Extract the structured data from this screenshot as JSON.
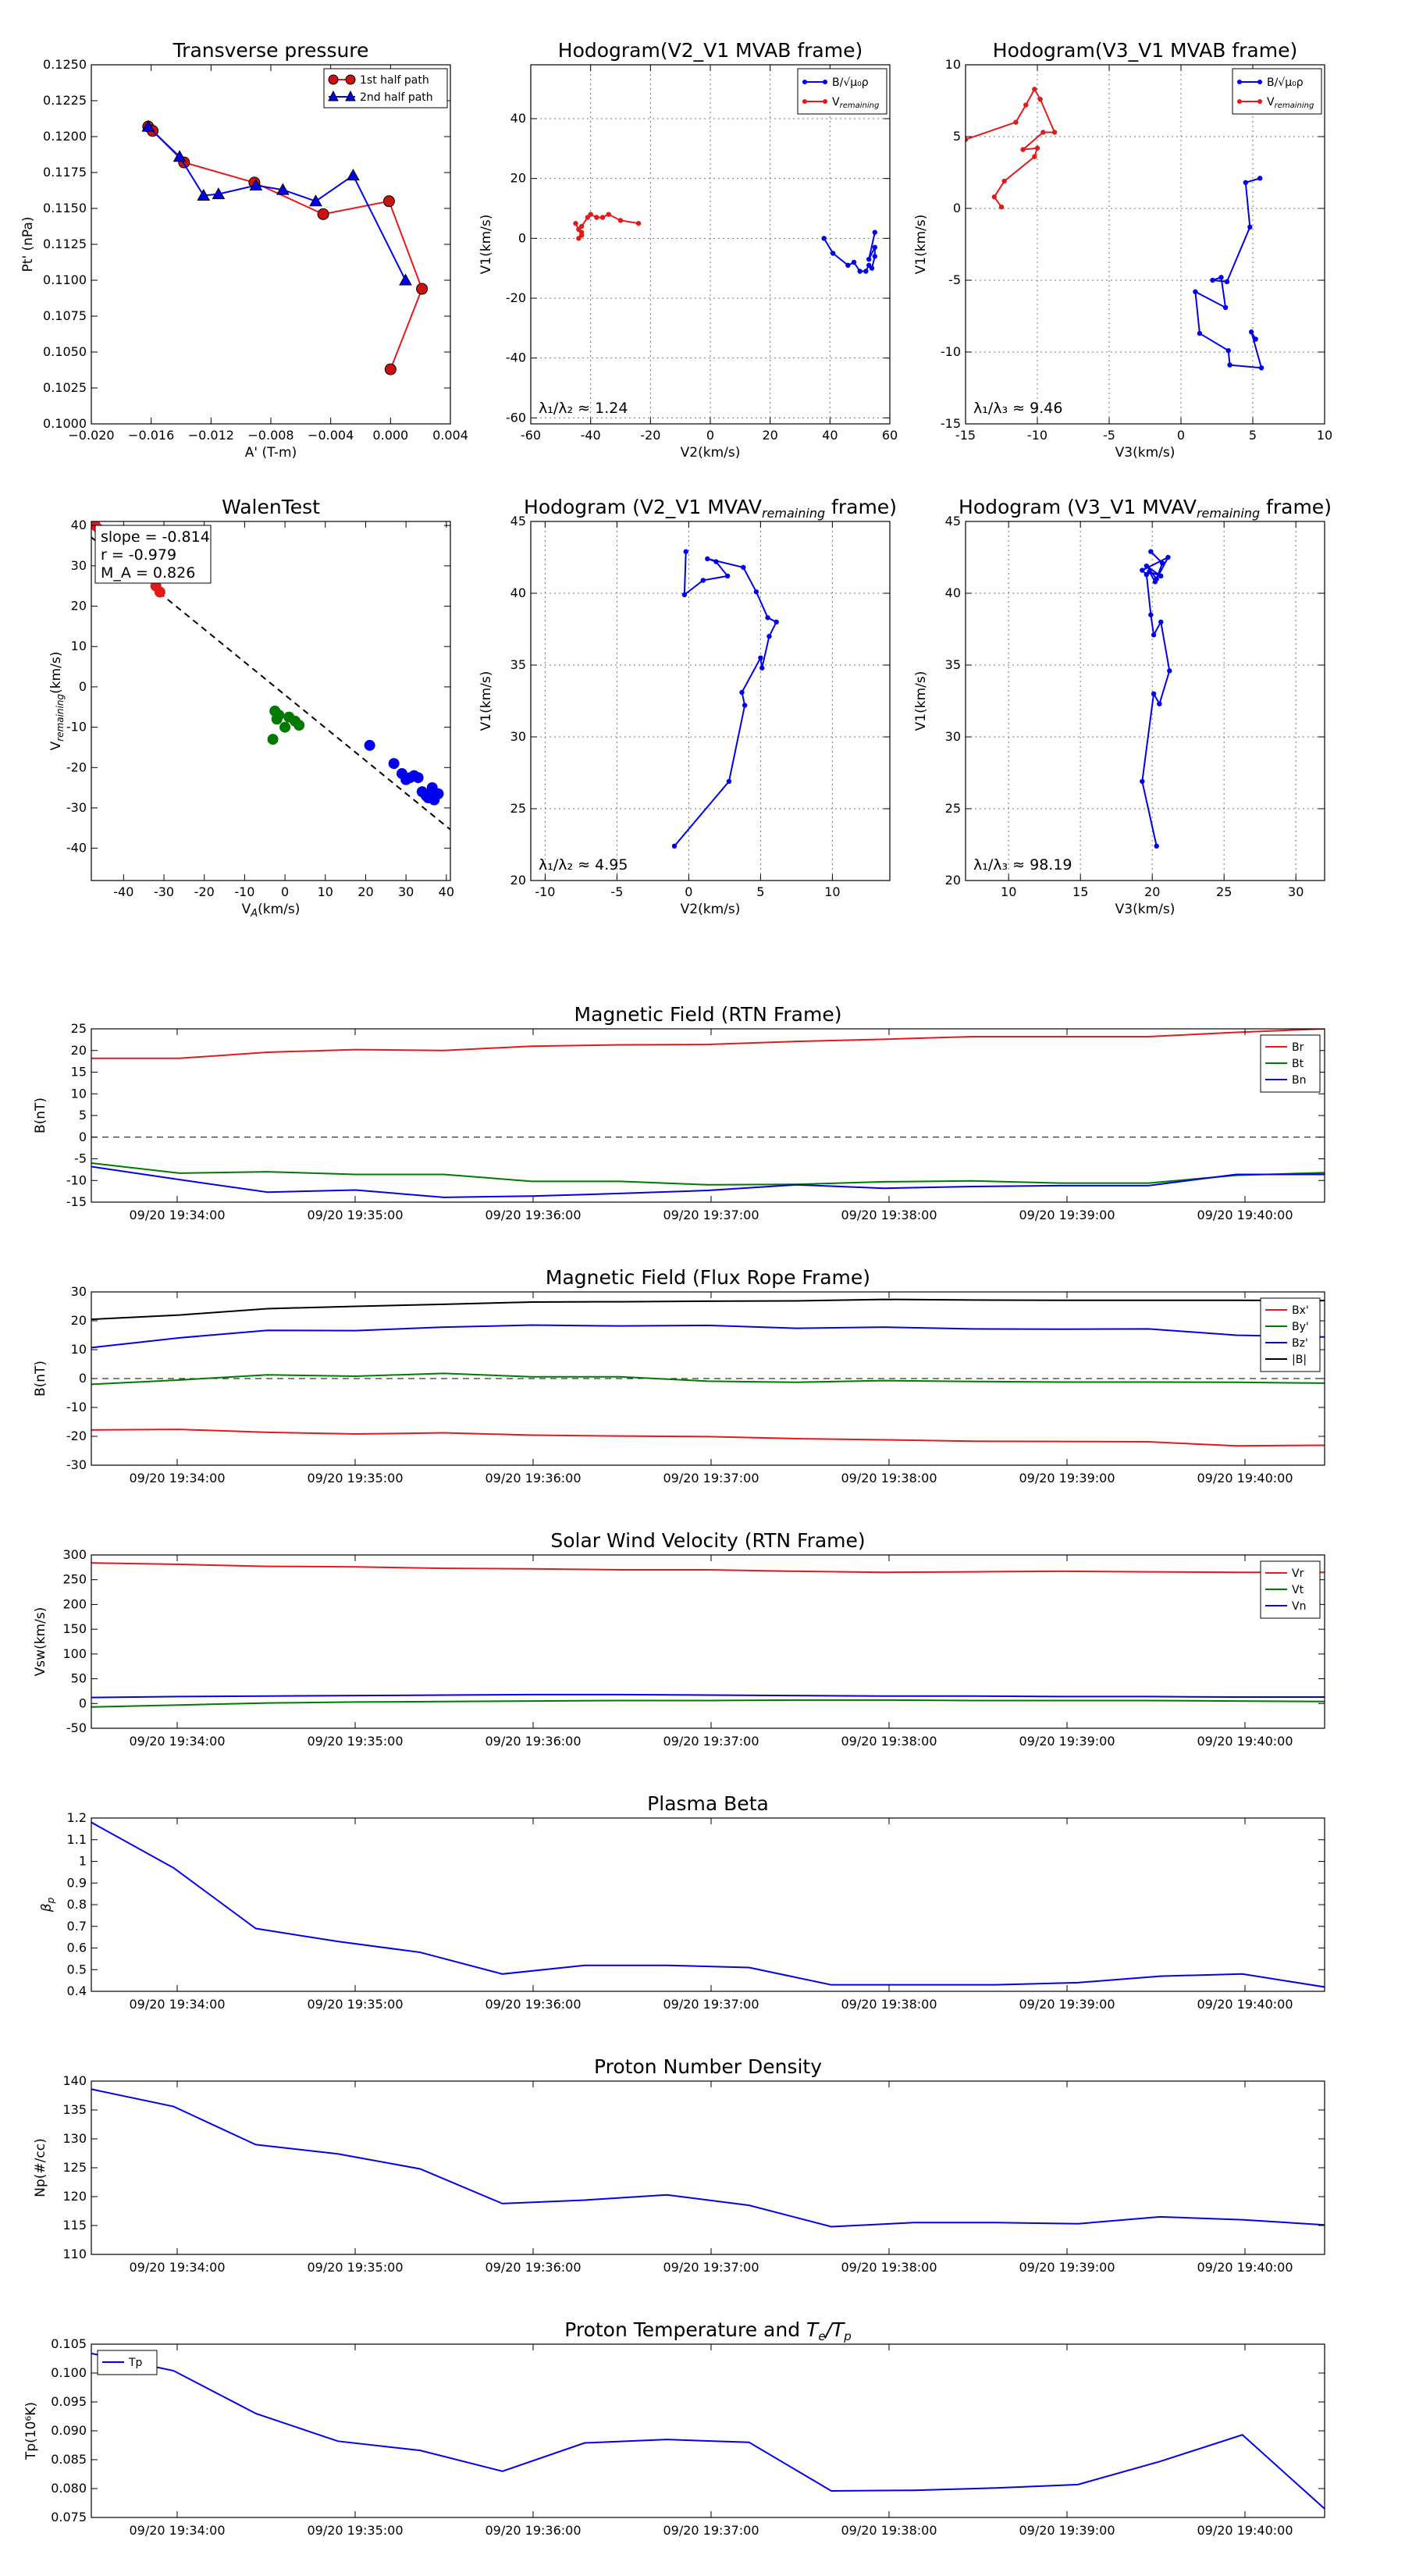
{
  "colors": {
    "red": "#e31a1c",
    "green": "#007a00",
    "blue": "#0000ee",
    "black": "#000000",
    "pt_red": "#cc1111"
  },
  "chart_data": [
    {
      "id": "pt",
      "type": "line",
      "title": "Transverse pressure",
      "xlabel": "A' (T-m)",
      "ylabel": "Pt' (nPa)",
      "xlim": [
        -0.02,
        0.004
      ],
      "ylim": [
        0.1,
        0.125
      ],
      "xticks": [
        -0.02,
        -0.016,
        -0.012,
        -0.008,
        -0.004,
        0.0,
        0.004
      ],
      "xtick_labels": [
        "−0.020",
        "−0.016",
        "−0.012",
        "−0.008",
        "−0.004",
        "0.000",
        "0.004"
      ],
      "yticks": [
        0.1,
        0.1025,
        0.105,
        0.1075,
        0.11,
        0.1125,
        0.115,
        0.1175,
        0.12,
        0.1225,
        0.125
      ],
      "ytick_labels": [
        "0.1000",
        "0.1025",
        "0.1050",
        "0.1075",
        "0.1100",
        "0.1125",
        "0.1150",
        "0.1175",
        "0.1200",
        "0.1225",
        "0.1250"
      ],
      "grid": false,
      "legend": "top-right",
      "series": [
        {
          "name": "1st half path",
          "color": "red",
          "marker": "circle",
          "x": [
            -0.0162,
            -0.0159,
            -0.0138,
            -0.0091,
            -0.0045,
            -0.0001,
            0.0021,
            0.0
          ],
          "y": [
            0.1207,
            0.1204,
            0.1182,
            0.1168,
            0.1146,
            0.1155,
            0.1094,
            0.1038
          ]
        },
        {
          "name": "2nd half path",
          "color": "blue",
          "marker": "triangle",
          "x": [
            -0.0162,
            -0.0141,
            -0.0125,
            -0.0115,
            -0.009,
            -0.0072,
            -0.005,
            -0.0025,
            0.001
          ],
          "y": [
            0.1207,
            0.1186,
            0.1159,
            0.116,
            0.1166,
            0.1163,
            0.1155,
            0.1173,
            0.11
          ]
        }
      ]
    },
    {
      "id": "hodo1",
      "type": "line",
      "title": "Hodogram(V2_V1 MVAB frame)",
      "xlabel": "V2(km/s)",
      "ylabel": "V1(km/s)",
      "xlim": [
        -60,
        60
      ],
      "ylim": [
        -62,
        58
      ],
      "xticks": [
        -60,
        -40,
        -20,
        0,
        20,
        40,
        60
      ],
      "yticks": [
        -60,
        -40,
        -20,
        0,
        20,
        40
      ],
      "grid": true,
      "legend": "top-right",
      "legend_labels": [
        "B/√μ₀ρ",
        "V_remaining"
      ],
      "annotation": "λ₁/λ₂ ≈ 1.24",
      "series": [
        {
          "color": "blue",
          "marker": "dot",
          "x": [
            38,
            41,
            46,
            48,
            50,
            52,
            53,
            54,
            55,
            55,
            53,
            55
          ],
          "y": [
            0,
            -5,
            -9,
            -8,
            -11,
            -11,
            -9,
            -10,
            -6,
            -3,
            -7,
            2
          ]
        },
        {
          "color": "red",
          "marker": "dot",
          "x": [
            -24,
            -30,
            -34,
            -36,
            -38,
            -40,
            -41,
            -43,
            -44,
            -45,
            -43,
            -43,
            -44
          ],
          "y": [
            5,
            6,
            8,
            7,
            7,
            8,
            7,
            4,
            3,
            5,
            1,
            2,
            0
          ]
        }
      ]
    },
    {
      "id": "hodo2",
      "type": "line",
      "title": "Hodogram(V3_V1 MVAB frame)",
      "xlabel": "V3(km/s)",
      "ylabel": "V1(km/s)",
      "xlim": [
        -15,
        10
      ],
      "ylim": [
        -15,
        10
      ],
      "xticks": [
        -15,
        -10,
        -5,
        0,
        5,
        10
      ],
      "yticks": [
        -15,
        -10,
        -5,
        0,
        5,
        10
      ],
      "grid": true,
      "legend": "top-right",
      "legend_labels": [
        "B/√μ₀ρ",
        "V_remaining"
      ],
      "annotation": "λ₁/λ₃ ≈ 9.46",
      "series": [
        {
          "color": "blue",
          "marker": "dot",
          "x": [
            5.5,
            4.5,
            4.8,
            3.2,
            2.2,
            2.8,
            3.1,
            1.0,
            1.3,
            3.3,
            3.4,
            5.6,
            4.9,
            5.2
          ],
          "y": [
            2.1,
            1.8,
            -1.3,
            -5.1,
            -5.0,
            -4.8,
            -6.9,
            -5.8,
            -8.7,
            -9.9,
            -10.9,
            -11.1,
            -8.6,
            -9.1
          ]
        },
        {
          "color": "red",
          "marker": "dot",
          "x": [
            -15.0,
            -11.5,
            -10.8,
            -10.2,
            -9.8,
            -8.8,
            -9.6,
            -11.0,
            -10.0,
            -10.2,
            -12.3,
            -13.0,
            -12.5
          ],
          "y": [
            4.8,
            6.0,
            7.2,
            8.3,
            7.6,
            5.3,
            5.3,
            4.1,
            4.2,
            3.6,
            1.9,
            0.8,
            0.1
          ]
        }
      ]
    },
    {
      "id": "walen",
      "type": "scatter",
      "title": "WalenTest",
      "xlabel": "V_A(km/s)",
      "ylabel": "V_remaining(km/s)",
      "xlim": [
        -48,
        41
      ],
      "ylim": [
        -48,
        41
      ],
      "xticks": [
        -40,
        -30,
        -20,
        -10,
        0,
        10,
        20,
        30,
        40
      ],
      "yticks": [
        -40,
        -30,
        -20,
        -10,
        0,
        10,
        20,
        30,
        40
      ],
      "grid": false,
      "annotation": [
        "slope = -0.814",
        "r = -0.979",
        "M_A = 0.826"
      ],
      "fit": {
        "slope": -0.814,
        "intercept": -2.0
      },
      "series": [
        {
          "color": "red",
          "x": [
            -47,
            -46,
            -45,
            -45.5,
            -44,
            -43,
            -42,
            -41,
            -40,
            -39,
            -38,
            -36,
            -35,
            -33,
            -31,
            -32
          ],
          "y": [
            40,
            39,
            38,
            36,
            36,
            35,
            35,
            33,
            33,
            32,
            31,
            30,
            29,
            27,
            23.5,
            25
          ]
        },
        {
          "color": "green",
          "x": [
            -2.5,
            -1.5,
            -2,
            0,
            1,
            2.5,
            3.5,
            -3
          ],
          "y": [
            -6,
            -7,
            -8,
            -10,
            -7.5,
            -8.5,
            -9.5,
            -13
          ]
        },
        {
          "color": "blue",
          "x": [
            21,
            27,
            29,
            30,
            31,
            32,
            33,
            34,
            35,
            36,
            37,
            38,
            36.5,
            35.5
          ],
          "y": [
            -14.5,
            -19,
            -21.5,
            -23,
            -22.5,
            -22,
            -22.5,
            -26,
            -27,
            -26.5,
            -28,
            -26.5,
            -25,
            -27.5
          ]
        }
      ]
    },
    {
      "id": "hodo3",
      "type": "line",
      "title": "Hodogram (V2_V1 MVAV_remaining frame)",
      "xlabel": "V2(km/s)",
      "ylabel": "V1(km/s)",
      "xlim": [
        -11,
        14
      ],
      "ylim": [
        20,
        45
      ],
      "xticks": [
        -10,
        -5,
        0,
        5,
        10
      ],
      "yticks": [
        20,
        25,
        30,
        35,
        40,
        45
      ],
      "grid": true,
      "annotation": "λ₁/λ₂ ≈ 4.95",
      "series": [
        {
          "color": "blue",
          "marker": "dot",
          "x": [
            -0.2,
            -0.3,
            1.0,
            2.7,
            1.9,
            1.3,
            3.8,
            4.7,
            5.5,
            6.1,
            5.6,
            5.1,
            5.0,
            3.7,
            3.9,
            2.8,
            -1.0
          ],
          "y": [
            42.9,
            39.9,
            40.9,
            41.2,
            42.2,
            42.4,
            41.8,
            40.1,
            38.3,
            38.0,
            37.0,
            34.8,
            35.5,
            33.1,
            32.2,
            26.9,
            22.4
          ]
        }
      ]
    },
    {
      "id": "hodo4",
      "type": "line",
      "title": "Hodogram (V3_V1 MVAV_remaining frame)",
      "xlabel": "V3(km/s)",
      "ylabel": "V1(km/s)",
      "xlim": [
        7,
        32
      ],
      "ylim": [
        20,
        45
      ],
      "xticks": [
        10,
        15,
        20,
        25,
        30
      ],
      "yticks": [
        20,
        25,
        30,
        35,
        40,
        45
      ],
      "grid": true,
      "annotation": "λ₁/λ₃ ≈ 98.19",
      "series": [
        {
          "color": "blue",
          "marker": "dot",
          "x": [
            19.9,
            20.7,
            20.3,
            19.6,
            20.6,
            19.8,
            20.2,
            21.1,
            19.3,
            19.6,
            19.9,
            20.1,
            20.6,
            21.2,
            20.5,
            20.1,
            19.3,
            20.3
          ],
          "y": [
            42.9,
            42.1,
            41.0,
            41.9,
            41.2,
            41.5,
            40.8,
            42.5,
            41.6,
            41.3,
            38.5,
            37.1,
            38.0,
            34.6,
            32.3,
            33.0,
            26.9,
            22.4
          ]
        }
      ]
    },
    {
      "id": "brtn",
      "type": "line",
      "title": "Magnetic Field (RTN Frame)",
      "ylabel": "B(nT)",
      "ylim": [
        -15,
        25
      ],
      "yticks": [
        -15,
        -10,
        -5,
        0,
        5,
        10,
        15,
        20,
        25
      ],
      "xticks_labels": [
        "09/20 19:34:00",
        "09/20 19:35:00",
        "09/20 19:36:00",
        "09/20 19:37:00",
        "09/20 19:38:00",
        "09/20 19:39:00",
        "09/20 19:40:00"
      ],
      "zero_line": true,
      "legend": "top-right",
      "series": [
        {
          "name": "Br",
          "color": "red",
          "values": [
            18.2,
            18.2,
            19.6,
            20.2,
            20.0,
            21.0,
            21.3,
            21.4,
            22.1,
            22.6,
            23.2,
            23.2,
            23.2,
            24.2,
            25.0
          ]
        },
        {
          "name": "Bt",
          "color": "green",
          "values": [
            -6.0,
            -8.3,
            -8.0,
            -8.6,
            -8.6,
            -10.2,
            -10.2,
            -11.0,
            -10.9,
            -10.3,
            -10.1,
            -10.6,
            -10.6,
            -8.8,
            -8.2
          ]
        },
        {
          "name": "Bn",
          "color": "blue",
          "values": [
            -6.8,
            -9.8,
            -12.7,
            -12.2,
            -13.9,
            -13.6,
            -13.0,
            -12.3,
            -11.0,
            -11.8,
            -11.4,
            -11.2,
            -11.2,
            -8.6,
            -8.6
          ]
        }
      ]
    },
    {
      "id": "bfr",
      "type": "line",
      "title": "Magnetic Field (Flux Rope Frame)",
      "ylabel": "B(nT)",
      "ylim": [
        -30,
        30
      ],
      "yticks": [
        -30,
        -20,
        -10,
        0,
        10,
        20,
        30
      ],
      "xticks_labels": [
        "09/20 19:34:00",
        "09/20 19:35:00",
        "09/20 19:36:00",
        "09/20 19:37:00",
        "09/20 19:38:00",
        "09/20 19:39:00",
        "09/20 19:40:00"
      ],
      "zero_line": true,
      "legend": "top-right",
      "series": [
        {
          "name": "Bx'",
          "color": "red",
          "values": [
            -17.8,
            -17.6,
            -18.6,
            -19.2,
            -18.8,
            -19.6,
            -19.9,
            -20.1,
            -20.8,
            -21.2,
            -21.7,
            -21.8,
            -21.9,
            -23.3,
            -23.1
          ]
        },
        {
          "name": "By'",
          "color": "green",
          "values": [
            -2.0,
            -0.5,
            1.3,
            0.8,
            1.8,
            0.6,
            0.6,
            -0.9,
            -1.3,
            -0.7,
            -1.0,
            -1.2,
            -1.2,
            -1.3,
            -1.6
          ]
        },
        {
          "name": "Bz'",
          "color": "blue",
          "values": [
            10.7,
            14.1,
            16.7,
            16.6,
            17.8,
            18.5,
            18.2,
            18.4,
            17.4,
            17.8,
            17.2,
            17.1,
            17.2,
            15.0,
            14.4
          ]
        },
        {
          "name": "|B|",
          "color": "black",
          "values": [
            20.5,
            22.0,
            24.2,
            25.0,
            25.7,
            26.5,
            26.6,
            26.8,
            26.9,
            27.4,
            27.2,
            27.1,
            27.1,
            27.1,
            27.0
          ]
        }
      ]
    },
    {
      "id": "vsw",
      "type": "line",
      "title": "Solar Wind Velocity (RTN Frame)",
      "ylabel": "Vsw(km/s)",
      "ylim": [
        -50,
        300
      ],
      "yticks": [
        -50,
        0,
        50,
        100,
        150,
        200,
        250,
        300
      ],
      "xticks_labels": [
        "09/20 19:34:00",
        "09/20 19:35:00",
        "09/20 19:36:00",
        "09/20 19:37:00",
        "09/20 19:38:00",
        "09/20 19:39:00",
        "09/20 19:40:00"
      ],
      "legend": "top-right",
      "series": [
        {
          "name": "Vr",
          "color": "red",
          "values": [
            284,
            281,
            277,
            276,
            273,
            272,
            270,
            270,
            267,
            265,
            266,
            267,
            266,
            265,
            265
          ]
        },
        {
          "name": "Vt",
          "color": "green",
          "values": [
            -7,
            -3,
            1,
            3,
            4,
            5,
            6,
            6,
            7,
            7,
            6,
            6,
            6,
            5,
            4
          ]
        },
        {
          "name": "Vn",
          "color": "blue",
          "values": [
            12,
            14,
            15,
            16,
            17,
            18,
            18,
            17,
            16,
            15,
            15,
            14,
            14,
            13,
            13
          ]
        }
      ]
    },
    {
      "id": "beta",
      "type": "line",
      "title": "Plasma Beta",
      "ylabel": "βp",
      "ylim": [
        0.4,
        1.2
      ],
      "yticks": [
        0.4,
        0.5,
        0.6,
        0.7,
        0.8,
        0.9,
        1.0,
        1.1,
        1.2
      ],
      "xticks_labels": [
        "09/20 19:34:00",
        "09/20 19:35:00",
        "09/20 19:36:00",
        "09/20 19:37:00",
        "09/20 19:38:00",
        "09/20 19:39:00",
        "09/20 19:40:00"
      ],
      "series": [
        {
          "color": "blue",
          "values": [
            1.18,
            0.97,
            0.69,
            0.63,
            0.58,
            0.48,
            0.52,
            0.52,
            0.51,
            0.43,
            0.43,
            0.43,
            0.44,
            0.47,
            0.48,
            0.42
          ]
        }
      ]
    },
    {
      "id": "np",
      "type": "line",
      "title": "Proton Number Density",
      "ylabel": "Np(#/cc)",
      "ylim": [
        110,
        140
      ],
      "yticks": [
        110,
        115,
        120,
        125,
        130,
        135,
        140
      ],
      "xticks_labels": [
        "09/20 19:34:00",
        "09/20 19:35:00",
        "09/20 19:36:00",
        "09/20 19:37:00",
        "09/20 19:38:00",
        "09/20 19:39:00",
        "09/20 19:40:00"
      ],
      "series": [
        {
          "color": "blue",
          "values": [
            138.6,
            135.6,
            129.0,
            127.4,
            124.8,
            118.8,
            119.4,
            120.3,
            118.5,
            114.8,
            115.5,
            115.5,
            115.3,
            116.5,
            116.0,
            115.1
          ]
        }
      ]
    },
    {
      "id": "tp",
      "type": "line",
      "title": "Proton Temperature and Te/Tp",
      "ylabel": "Tp(10⁶K)",
      "ylim": [
        0.075,
        0.105
      ],
      "yticks": [
        0.075,
        0.08,
        0.085,
        0.09,
        0.095,
        0.1,
        0.105
      ],
      "ytick_labels": [
        "0.075",
        "0.080",
        "0.085",
        "0.090",
        "0.095",
        "0.100",
        "0.105"
      ],
      "xticks_labels": [
        "09/20 19:34:00",
        "09/20 19:35:00",
        "09/20 19:36:00",
        "09/20 19:37:00",
        "09/20 19:38:00",
        "09/20 19:39:00",
        "09/20 19:40:00"
      ],
      "legend": "top-left",
      "series": [
        {
          "name": "Tp",
          "color": "blue",
          "values": [
            0.1034,
            0.1004,
            0.093,
            0.0882,
            0.0866,
            0.083,
            0.0879,
            0.0885,
            0.088,
            0.0796,
            0.0797,
            0.0801,
            0.0807,
            0.0847,
            0.0893,
            0.0765
          ]
        }
      ]
    }
  ]
}
